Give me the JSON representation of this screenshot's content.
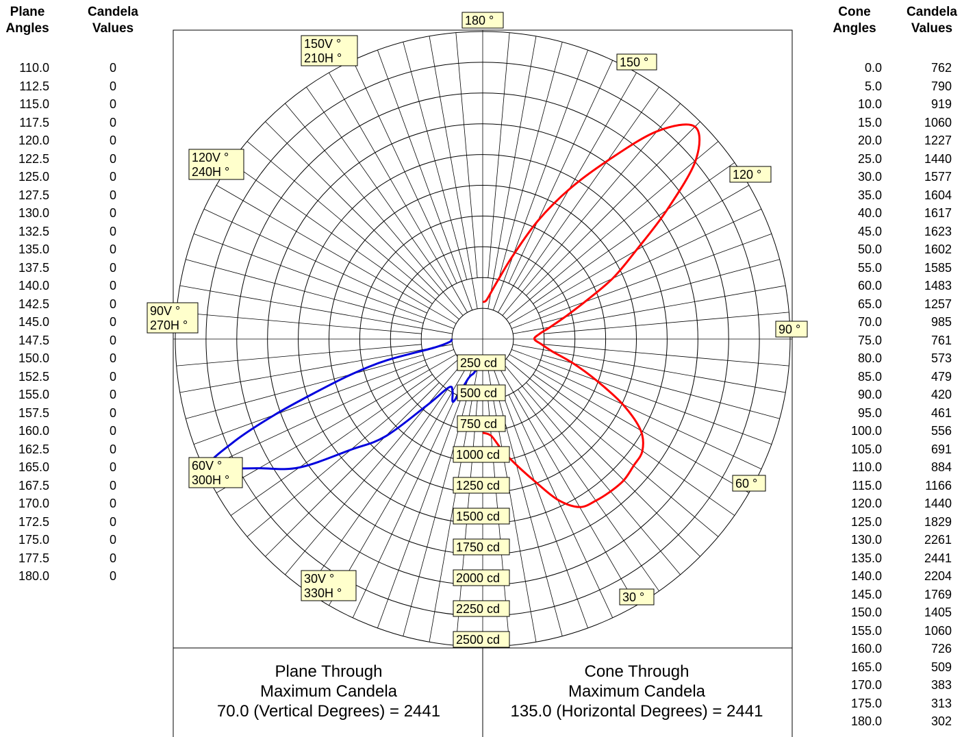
{
  "left_table": {
    "header_angle": [
      "Plane",
      "Angles"
    ],
    "header_value": [
      "Candela",
      "Values"
    ],
    "angles": [
      "110.0",
      "112.5",
      "115.0",
      "117.5",
      "120.0",
      "122.5",
      "125.0",
      "127.5",
      "130.0",
      "132.5",
      "135.0",
      "137.5",
      "140.0",
      "142.5",
      "145.0",
      "147.5",
      "150.0",
      "152.5",
      "155.0",
      "157.5",
      "160.0",
      "162.5",
      "165.0",
      "167.5",
      "170.0",
      "172.5",
      "175.0",
      "177.5",
      "180.0"
    ],
    "values": [
      "0",
      "0",
      "0",
      "0",
      "0",
      "0",
      "0",
      "0",
      "0",
      "0",
      "0",
      "0",
      "0",
      "0",
      "0",
      "0",
      "0",
      "0",
      "0",
      "0",
      "0",
      "0",
      "0",
      "0",
      "0",
      "0",
      "0",
      "0",
      "0"
    ]
  },
  "right_table": {
    "header_angle": [
      "Cone",
      "Angles"
    ],
    "header_value": [
      "Candela",
      "Values"
    ],
    "angles": [
      "0.0",
      "5.0",
      "10.0",
      "15.0",
      "20.0",
      "25.0",
      "30.0",
      "35.0",
      "40.0",
      "45.0",
      "50.0",
      "55.0",
      "60.0",
      "65.0",
      "70.0",
      "75.0",
      "80.0",
      "85.0",
      "90.0",
      "95.0",
      "100.0",
      "105.0",
      "110.0",
      "115.0",
      "120.0",
      "125.0",
      "130.0",
      "135.0",
      "140.0",
      "145.0",
      "150.0",
      "155.0",
      "160.0",
      "165.0",
      "170.0",
      "175.0",
      "180.0"
    ],
    "values": [
      "762",
      "790",
      "919",
      "1060",
      "1227",
      "1440",
      "1577",
      "1604",
      "1617",
      "1623",
      "1602",
      "1585",
      "1483",
      "1257",
      "985",
      "761",
      "573",
      "479",
      "420",
      "461",
      "556",
      "691",
      "884",
      "1166",
      "1440",
      "1829",
      "2261",
      "2441",
      "2204",
      "1769",
      "1405",
      "1060",
      "726",
      "509",
      "383",
      "313",
      "302"
    ]
  },
  "chart_data": {
    "type": "polar",
    "radial_unit": "cd",
    "radial_max": 2500,
    "radial_ticks": [
      250,
      500,
      750,
      1000,
      1250,
      1500,
      1750,
      2000,
      2250,
      2500
    ],
    "radial_tick_labels": [
      "250 cd",
      "500 cd",
      "750 cd",
      "1000 cd",
      "1250 cd",
      "1500 cd",
      "1750 cd",
      "2000 cd",
      "2250 cd",
      "2500 cd"
    ],
    "angle_labels_right": [
      {
        "angle": 180,
        "text": "180 °"
      },
      {
        "angle": 150,
        "text": "150 °"
      },
      {
        "angle": 120,
        "text": "120 °"
      },
      {
        "angle": 90,
        "text": "90 °"
      },
      {
        "angle": 60,
        "text": "60 °"
      },
      {
        "angle": 30,
        "text": "30 °"
      }
    ],
    "angle_labels_left": [
      {
        "angle": 150,
        "lines": [
          "150V °",
          "210H °"
        ]
      },
      {
        "angle": 120,
        "lines": [
          "120V °",
          "240H °"
        ]
      },
      {
        "angle": 90,
        "lines": [
          "90V °",
          "270H °"
        ]
      },
      {
        "angle": 60,
        "lines": [
          "60V °",
          "300H °"
        ]
      },
      {
        "angle": 30,
        "lines": [
          "30V °",
          "330H °"
        ]
      }
    ],
    "series": [
      {
        "color": "#ff0000",
        "angles": [
          0,
          5,
          10,
          15,
          20,
          25,
          30,
          35,
          40,
          45,
          50,
          55,
          60,
          65,
          70,
          75,
          80,
          85,
          90,
          95,
          100,
          105,
          110,
          115,
          120,
          125,
          130,
          135,
          140,
          145,
          150,
          155,
          160,
          165,
          170,
          175,
          180
        ],
        "values": [
          762,
          790,
          919,
          1060,
          1227,
          1440,
          1577,
          1604,
          1617,
          1623,
          1602,
          1585,
          1483,
          1257,
          985,
          761,
          573,
          479,
          420,
          461,
          556,
          691,
          884,
          1166,
          1440,
          1829,
          2261,
          2441,
          2204,
          1769,
          1405,
          1060,
          726,
          509,
          383,
          313,
          302
        ]
      },
      {
        "color": "#0000dd",
        "angles": [
          0,
          5,
          10,
          15,
          20,
          25,
          30,
          35,
          40,
          45,
          50,
          55,
          60,
          65,
          67.5,
          70,
          72.5,
          75,
          77.5,
          80,
          85,
          90
        ],
        "values": [
          181,
          210,
          240,
          290,
          340,
          560,
          490,
          480,
          700,
          1120,
          1400,
          1820,
          2100,
          2441,
          2200,
          1800,
          1400,
          1100,
          800,
          400,
          270,
          250
        ]
      }
    ]
  },
  "summary_left": {
    "line1": "Plane Through",
    "line2": "Maximum Candela",
    "line3": "70.0 (Vertical Degrees) = 2441"
  },
  "summary_right": {
    "line1": "Cone Through",
    "line2": "Maximum Candela",
    "line3": "135.0 (Horizontal Degrees) = 2441"
  }
}
